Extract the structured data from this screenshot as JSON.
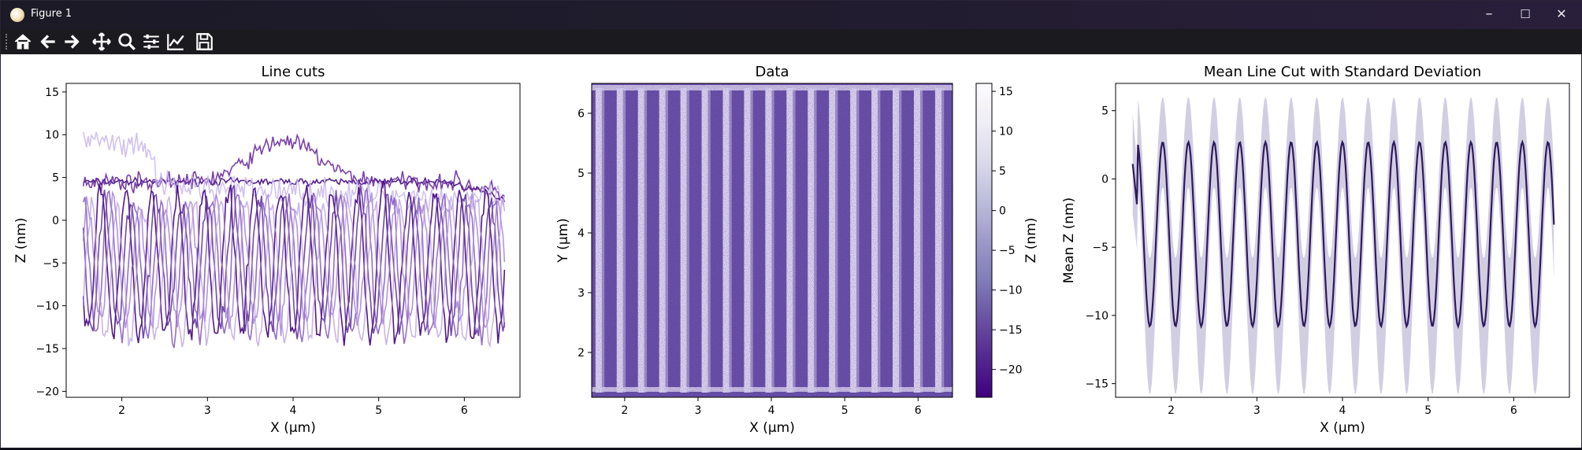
{
  "window": {
    "title": "Figure 1",
    "controls": {
      "minimize": "–",
      "maximize": "☐",
      "close": "✕"
    }
  },
  "toolbar": {
    "buttons": [
      "home-icon",
      "back-icon",
      "forward-icon",
      "pan-icon",
      "zoom-icon",
      "configure-subplots-icon",
      "edit-axis-icon",
      "save-icon"
    ]
  },
  "colors": {
    "figure_bg": "#ffffff",
    "mean_line": "#2e1a5e",
    "std_fill": "#6a5d9e",
    "linecut_palette": [
      "#3f007d",
      "#54278f",
      "#6a51a3",
      "#807dba",
      "#9e9ac8",
      "#bcbddc"
    ]
  },
  "chart_data": [
    {
      "type": "line",
      "title": "Line cuts",
      "xlabel": "X (µm)",
      "ylabel": "Z (nm)",
      "xlim": [
        1.35,
        6.65
      ],
      "ylim": [
        -20.7,
        16
      ],
      "xticks": [
        2,
        3,
        4,
        5,
        6
      ],
      "yticks": [
        -20,
        -15,
        -10,
        -5,
        0,
        5,
        10,
        15
      ],
      "x_range": [
        1.55,
        6.47
      ],
      "stripe_period_um": 0.3,
      "series": [
        {
          "level": 4.5,
          "profile": "flat",
          "color": "#4a1486",
          "alpha": 0.95
        },
        {
          "level": 5.5,
          "profile": "bump",
          "color": "#6a2ea0",
          "alpha": 0.9
        },
        {
          "level": 9.0,
          "profile": "decay",
          "color": "#c7b3e8",
          "alpha": 0.8
        },
        {
          "level": -5.0,
          "profile": "oscillating",
          "amplitude": 8.5,
          "color": "#3f007d",
          "alpha": 0.9
        },
        {
          "level": -5.0,
          "profile": "oscillating",
          "amplitude": 7.5,
          "color": "#5b2a96",
          "alpha": 0.85
        },
        {
          "level": -5.5,
          "profile": "oscillating",
          "amplitude": 8.0,
          "color": "#7b4bb8",
          "alpha": 0.8
        },
        {
          "level": -5.0,
          "profile": "oscillating",
          "amplitude": 7.0,
          "color": "#9a73d0",
          "alpha": 0.75
        },
        {
          "level": -6.0,
          "profile": "oscillating",
          "amplitude": 8.0,
          "color": "#b594e0",
          "alpha": 0.7
        }
      ]
    },
    {
      "type": "heatmap",
      "title": "Data",
      "xlabel": "X (µm)",
      "ylabel": "Y (µm)",
      "xlim": [
        1.55,
        6.47
      ],
      "ylim": [
        1.25,
        6.5
      ],
      "xticks": [
        2,
        3,
        4,
        5,
        6
      ],
      "yticks": [
        2,
        3,
        4,
        5,
        6
      ],
      "stripe_count": 17,
      "colorbar": {
        "label": "Z (nm)",
        "range": [
          -23.5,
          16
        ],
        "ticks": [
          15,
          10,
          5,
          0,
          -5,
          -10,
          -15,
          -20
        ],
        "colormap": [
          "#3f007d",
          "#54278f",
          "#6a51a3",
          "#807dba",
          "#9e9ac8",
          "#bcbddc",
          "#dadaeb",
          "#efedf5",
          "#fcfbfd"
        ]
      }
    },
    {
      "type": "line",
      "title": "Mean Line Cut with Standard Deviation",
      "xlabel": "X (µm)",
      "ylabel": "Mean Z (nm)",
      "xlim": [
        1.35,
        6.65
      ],
      "ylim": [
        -16,
        7
      ],
      "xticks": [
        2,
        3,
        4,
        5,
        6
      ],
      "yticks": [
        -15,
        -10,
        -5,
        0,
        5
      ],
      "x_range": [
        1.55,
        6.47
      ],
      "series": [
        {
          "name": "mean",
          "peak": 2.7,
          "trough": -10.8,
          "color": "#2e1a5e"
        },
        {
          "name": "std",
          "upper_peak": 5.0,
          "lower_trough": -14.8,
          "color": "#6a5d9e",
          "alpha": 0.3
        }
      ]
    }
  ]
}
